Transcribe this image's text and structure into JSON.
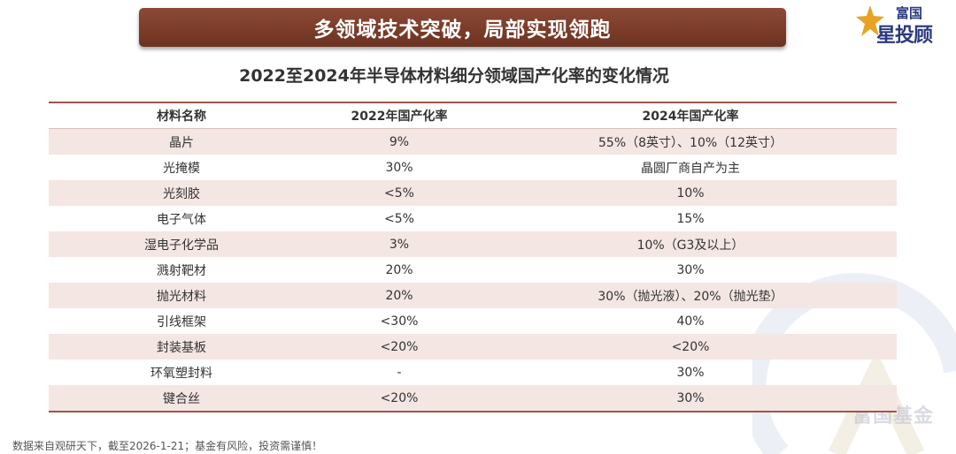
{
  "banner": {
    "title": "多领域技术突破，局部实现领跑"
  },
  "logo": {
    "small_text": "富国",
    "big_text": "星投顾"
  },
  "watermark": {
    "text": "富国基金"
  },
  "subtitle": "2022至2024年半导体材料细分领域国产化率的变化情况",
  "table": {
    "headers": [
      "材料名称",
      "2022年国产化率",
      "2024年国产化率"
    ],
    "rows": [
      {
        "name": "晶片",
        "y2022": "9%",
        "y2024": "55%（8英寸）、10%（12英寸）"
      },
      {
        "name": "光掩模",
        "y2022": "30%",
        "y2024": "晶圆厂商自产为主"
      },
      {
        "name": "光刻胶",
        "y2022": "<5%",
        "y2024": "10%"
      },
      {
        "name": "电子气体",
        "y2022": "<5%",
        "y2024": "15%"
      },
      {
        "name": "湿电子化学品",
        "y2022": "3%",
        "y2024": "10%（G3及以上）"
      },
      {
        "name": "溅射靶材",
        "y2022": "20%",
        "y2024": "30%"
      },
      {
        "name": "抛光材料",
        "y2022": "20%",
        "y2024": "30%（抛光液）、20%（抛光垫）"
      },
      {
        "name": "引线框架",
        "y2022": "<30%",
        "y2024": "40%"
      },
      {
        "name": "封装基板",
        "y2022": "<20%",
        "y2024": "<20%"
      },
      {
        "name": "环氧塑封料",
        "y2022": "-",
        "y2024": "30%"
      },
      {
        "name": "键合丝",
        "y2022": "<20%",
        "y2024": "30%"
      }
    ]
  },
  "footnote": "数据来自观研天下，截至2026-1-21；基金有风险，投资需谨慎！",
  "colors": {
    "banner": "#7a3b28",
    "table_rule": "#a0554a",
    "row_shade": "#f3e6e3",
    "logo_blue": "#2b3a80",
    "logo_gold": "#e8a325"
  }
}
